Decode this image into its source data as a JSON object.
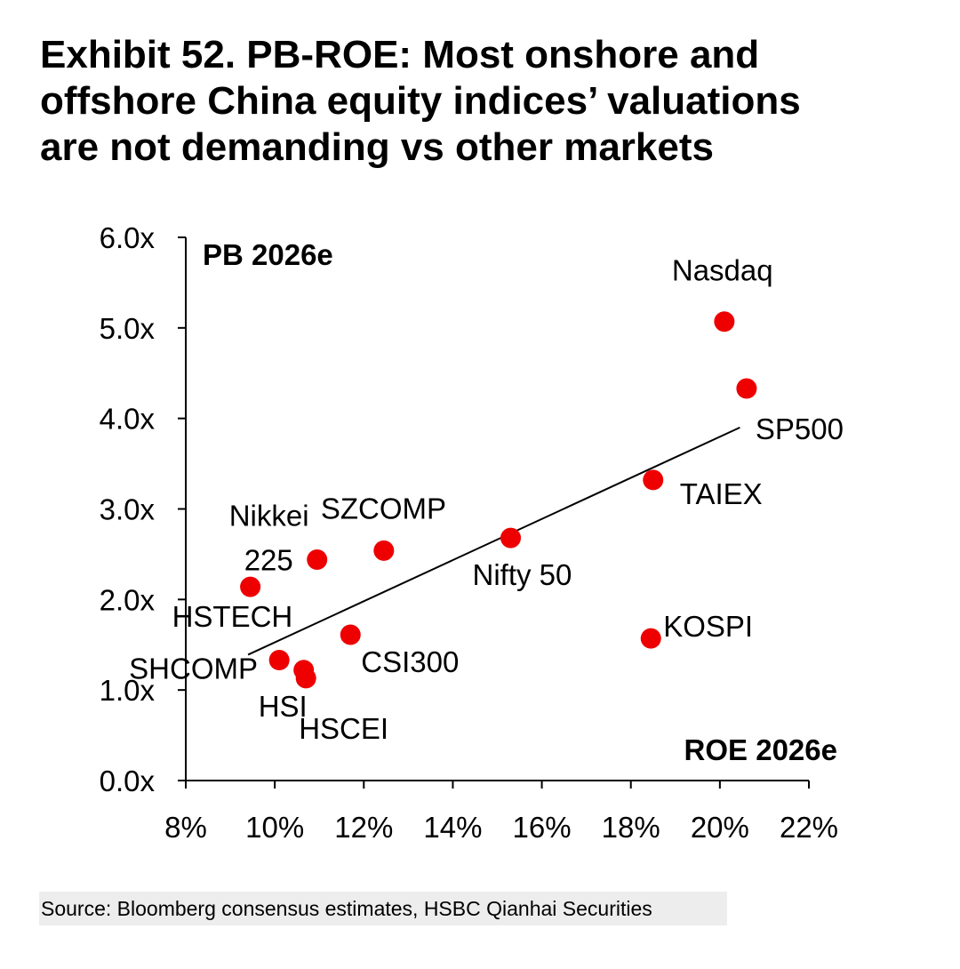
{
  "title": {
    "lines": [
      "Exhibit 52. PB-ROE: Most onshore and",
      "offshore China equity indices’ valuations",
      "are not demanding vs other markets"
    ]
  },
  "source": "Source: Bloomberg consensus estimates, HSBC Qianhai Securities",
  "colors": {
    "marker": "#ee0000",
    "axis": "#000000",
    "trendline": "#000000"
  },
  "chart_data": {
    "type": "scatter",
    "xlabel": "ROE 2026e",
    "ylabel": "PB 2026e",
    "xlim": [
      0.08,
      0.22
    ],
    "ylim": [
      0.0,
      6.0
    ],
    "x_ticks": [
      {
        "value": 0.08,
        "label": "8%"
      },
      {
        "value": 0.1,
        "label": "10%"
      },
      {
        "value": 0.12,
        "label": "12%"
      },
      {
        "value": 0.14,
        "label": "14%"
      },
      {
        "value": 0.16,
        "label": "16%"
      },
      {
        "value": 0.18,
        "label": "18%"
      },
      {
        "value": 0.2,
        "label": "20%"
      },
      {
        "value": 0.22,
        "label": "22%"
      }
    ],
    "y_ticks": [
      {
        "value": 0,
        "label": "0.0x"
      },
      {
        "value": 1,
        "label": "1.0x"
      },
      {
        "value": 2,
        "label": "2.0x"
      },
      {
        "value": 3,
        "label": "3.0x"
      },
      {
        "value": 4,
        "label": "4.0x"
      },
      {
        "value": 5,
        "label": "5.0x"
      },
      {
        "value": 6,
        "label": "6.0x"
      }
    ],
    "points": [
      {
        "name": "Nasdaq",
        "roe": 0.201,
        "pb": 5.07,
        "label_lines": [
          "Nasdaq"
        ]
      },
      {
        "name": "SP500",
        "roe": 0.206,
        "pb": 4.33,
        "label_lines": [
          "SP500"
        ]
      },
      {
        "name": "TAIEX",
        "roe": 0.185,
        "pb": 3.32,
        "label_lines": [
          "TAIEX"
        ]
      },
      {
        "name": "KOSPI",
        "roe": 0.1845,
        "pb": 1.57,
        "label_lines": [
          "KOSPI"
        ]
      },
      {
        "name": "Nifty 50",
        "roe": 0.153,
        "pb": 2.68,
        "label_lines": [
          "Nifty 50"
        ]
      },
      {
        "name": "SZCOMP",
        "roe": 0.1245,
        "pb": 2.54,
        "label_lines": [
          "SZCOMP"
        ]
      },
      {
        "name": "Nikkei 225",
        "roe": 0.1095,
        "pb": 2.44,
        "label_lines": [
          "Nikkei",
          "225"
        ]
      },
      {
        "name": "HSTECH",
        "roe": 0.0945,
        "pb": 2.14,
        "label_lines": [
          "HSTECH"
        ]
      },
      {
        "name": "CSI300",
        "roe": 0.117,
        "pb": 1.61,
        "label_lines": [
          "CSI300"
        ]
      },
      {
        "name": "SHCOMP",
        "roe": 0.101,
        "pb": 1.33,
        "label_lines": [
          "SHCOMP"
        ]
      },
      {
        "name": "HSI",
        "roe": 0.1065,
        "pb": 1.22,
        "label_lines": [
          "HSI"
        ]
      },
      {
        "name": "HSCEI",
        "roe": 0.107,
        "pb": 1.13,
        "label_lines": [
          "HSCEI"
        ]
      }
    ],
    "trendline": {
      "x": [
        0.094,
        0.2045
      ],
      "y": [
        1.39,
        3.9
      ]
    }
  }
}
